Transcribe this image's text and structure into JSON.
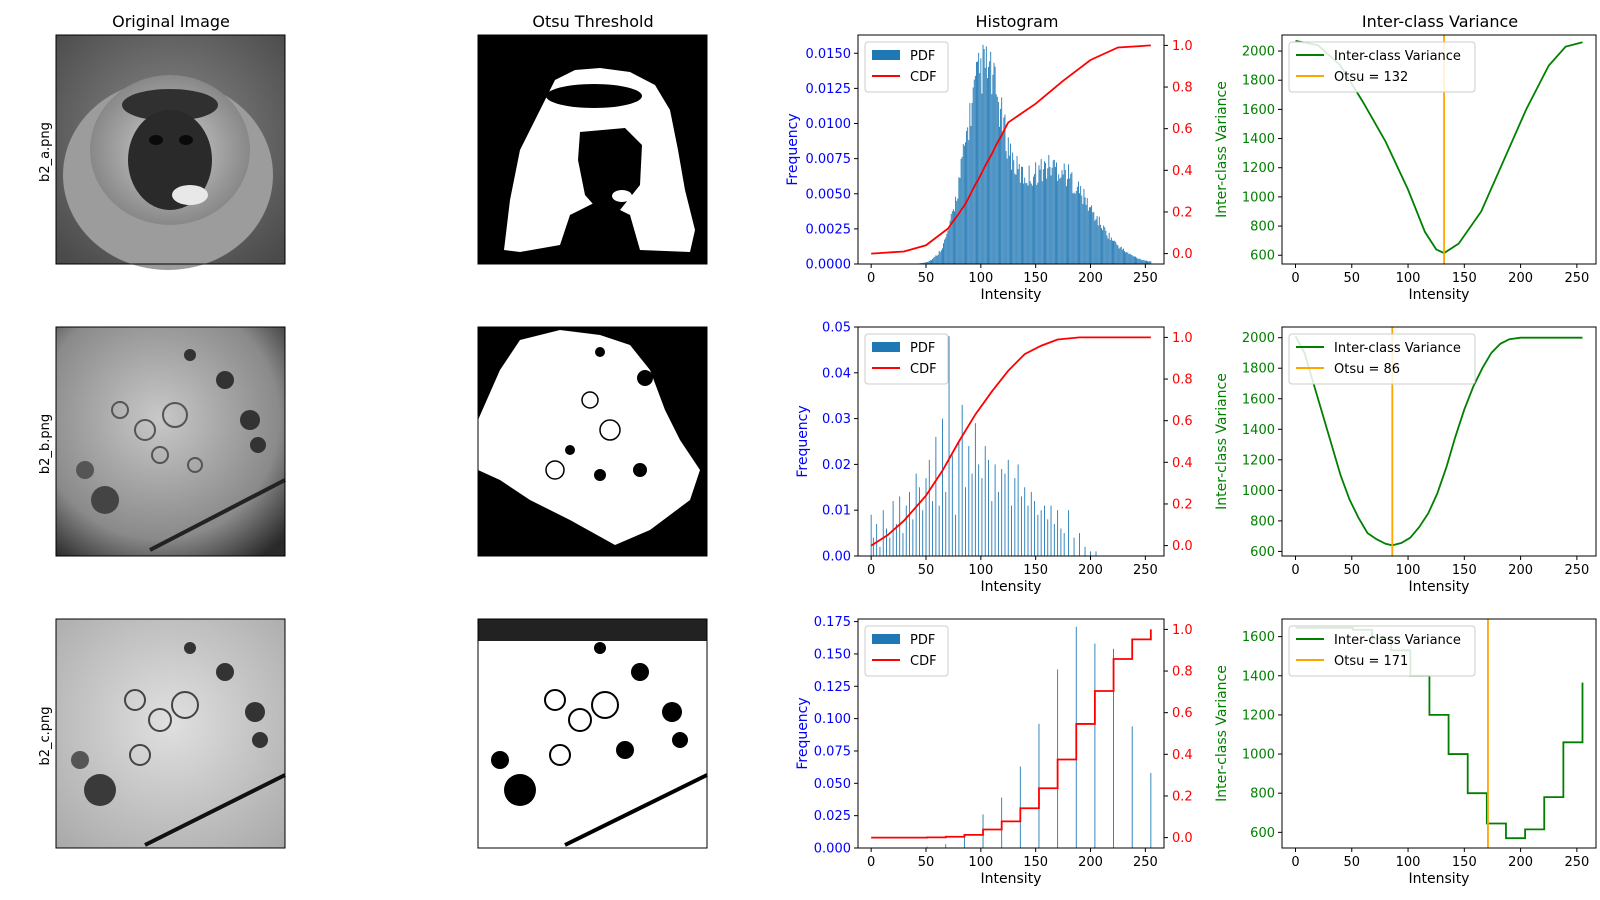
{
  "column_titles": [
    "Original Image",
    "Otsu Threshold",
    "Histogram",
    "Inter-class Variance"
  ],
  "row_labels": [
    "b2_a.png",
    "b2_b.png",
    "b2_c.png"
  ],
  "colors": {
    "pdf": "#1f77b4",
    "cdf": "#ff0000",
    "variance": "#008000",
    "otsu_line": "#ffa500",
    "left_axis": "#0000ff",
    "right_axis": "#ff0000"
  },
  "chart_data": [
    {
      "type": "bar",
      "row": "b2_a.png",
      "title": "Histogram",
      "xlabel": "Intensity",
      "ylabel": "Frequency",
      "y2label": "",
      "xlim": [
        -12,
        267
      ],
      "ylim": [
        0,
        0.0163
      ],
      "y2lim": [
        -0.05,
        1.05
      ],
      "xticks": [
        0,
        50,
        100,
        150,
        200,
        250
      ],
      "yticks": [
        0,
        0.0025,
        0.005,
        0.0075,
        0.01,
        0.0125,
        0.015
      ],
      "ytick_labels": [
        "0.0000",
        "0.0025",
        "0.0050",
        "0.0075",
        "0.0100",
        "0.0125",
        "0.0150"
      ],
      "y2ticks": [
        0,
        0.2,
        0.4,
        0.6,
        0.8,
        1.0
      ],
      "y2tick_labels": [
        "0.0",
        "0.2",
        "0.4",
        "0.6",
        "0.8",
        "1.0"
      ],
      "legend": [
        "PDF",
        "CDF"
      ],
      "legend_loc": "upper left",
      "pdf_profile": {
        "kind": "bimodal",
        "center1": 102,
        "sd1": 17,
        "weight1": 0.68,
        "center2": 165,
        "sd2": 33,
        "weight2": 0.32,
        "peak": 0.0156
      },
      "cdf_points": [
        [
          0,
          0
        ],
        [
          30,
          0.01
        ],
        [
          50,
          0.04
        ],
        [
          70,
          0.12
        ],
        [
          85,
          0.23
        ],
        [
          100,
          0.38
        ],
        [
          110,
          0.48
        ],
        [
          125,
          0.63
        ],
        [
          150,
          0.72
        ],
        [
          175,
          0.83
        ],
        [
          200,
          0.93
        ],
        [
          225,
          0.99
        ],
        [
          255,
          1.0
        ]
      ]
    },
    {
      "type": "line",
      "row": "b2_a.png",
      "title": "Inter-class Variance",
      "xlabel": "Intensity",
      "ylabel": "Inter-class Variance",
      "xlim": [
        -12,
        267
      ],
      "ylim": [
        540,
        2110
      ],
      "xticks": [
        0,
        50,
        100,
        150,
        200,
        250
      ],
      "yticks": [
        600,
        800,
        1000,
        1200,
        1400,
        1600,
        1800,
        2000
      ],
      "legend": [
        "Inter-class Variance",
        "Otsu = 132"
      ],
      "legend_loc": "upper left",
      "otsu": 132,
      "variance_points": [
        [
          0,
          2070
        ],
        [
          20,
          2040
        ],
        [
          40,
          1900
        ],
        [
          60,
          1650
        ],
        [
          80,
          1380
        ],
        [
          100,
          1050
        ],
        [
          115,
          760
        ],
        [
          125,
          640
        ],
        [
          132,
          615
        ],
        [
          145,
          680
        ],
        [
          165,
          900
        ],
        [
          185,
          1250
        ],
        [
          205,
          1600
        ],
        [
          225,
          1900
        ],
        [
          240,
          2030
        ],
        [
          255,
          2060
        ]
      ]
    },
    {
      "type": "bar",
      "row": "b2_b.png",
      "title": "",
      "xlabel": "Intensity",
      "ylabel": "Frequency",
      "y2label": "",
      "xlim": [
        -12,
        267
      ],
      "ylim": [
        0,
        0.05
      ],
      "y2lim": [
        -0.05,
        1.05
      ],
      "xticks": [
        0,
        50,
        100,
        150,
        200,
        250
      ],
      "yticks": [
        0,
        0.01,
        0.02,
        0.03,
        0.04,
        0.05
      ],
      "ytick_labels": [
        "0.00",
        "0.01",
        "0.02",
        "0.03",
        "0.04",
        "0.05"
      ],
      "y2ticks": [
        0,
        0.2,
        0.4,
        0.6,
        0.8,
        1.0
      ],
      "y2tick_labels": [
        "0.0",
        "0.2",
        "0.4",
        "0.6",
        "0.8",
        "1.0"
      ],
      "legend": [
        "PDF",
        "CDF"
      ],
      "legend_loc": "upper left",
      "pdf_bars": [
        [
          0,
          0.009
        ],
        [
          2,
          0.004
        ],
        [
          5,
          0.007
        ],
        [
          8,
          0.002
        ],
        [
          11,
          0.01
        ],
        [
          14,
          0.006
        ],
        [
          17,
          0.004
        ],
        [
          20,
          0.012
        ],
        [
          23,
          0.007
        ],
        [
          26,
          0.013
        ],
        [
          29,
          0.005
        ],
        [
          32,
          0.011
        ],
        [
          35,
          0.014
        ],
        [
          38,
          0.008
        ],
        [
          41,
          0.018
        ],
        [
          44,
          0.015
        ],
        [
          47,
          0.01
        ],
        [
          50,
          0.017
        ],
        [
          53,
          0.021
        ],
        [
          56,
          0.012
        ],
        [
          59,
          0.026
        ],
        [
          62,
          0.011
        ],
        [
          65,
          0.03
        ],
        [
          68,
          0.014
        ],
        [
          71,
          0.048
        ],
        [
          74,
          0.022
        ],
        [
          77,
          0.009
        ],
        [
          80,
          0.025
        ],
        [
          83,
          0.033
        ],
        [
          86,
          0.015
        ],
        [
          89,
          0.024
        ],
        [
          92,
          0.018
        ],
        [
          95,
          0.029
        ],
        [
          98,
          0.02
        ],
        [
          101,
          0.017
        ],
        [
          104,
          0.024
        ],
        [
          107,
          0.021
        ],
        [
          110,
          0.012
        ],
        [
          113,
          0.02
        ],
        [
          116,
          0.014
        ],
        [
          119,
          0.019
        ],
        [
          122,
          0.018
        ],
        [
          125,
          0.021
        ],
        [
          128,
          0.011
        ],
        [
          131,
          0.017
        ],
        [
          134,
          0.02
        ],
        [
          137,
          0.013
        ],
        [
          140,
          0.015
        ],
        [
          143,
          0.011
        ],
        [
          146,
          0.014
        ],
        [
          149,
          0.012
        ],
        [
          152,
          0.009
        ],
        [
          155,
          0.01
        ],
        [
          158,
          0.011
        ],
        [
          161,
          0.008
        ],
        [
          164,
          0.011
        ],
        [
          167,
          0.007
        ],
        [
          170,
          0.01
        ],
        [
          173,
          0.006
        ],
        [
          176,
          0.005
        ],
        [
          180,
          0.01
        ],
        [
          185,
          0.004
        ],
        [
          190,
          0.005
        ],
        [
          195,
          0.002
        ],
        [
          200,
          0.001
        ],
        [
          205,
          0.001
        ]
      ],
      "cdf_points": [
        [
          0,
          0.0
        ],
        [
          15,
          0.05
        ],
        [
          30,
          0.12
        ],
        [
          50,
          0.24
        ],
        [
          65,
          0.36
        ],
        [
          80,
          0.5
        ],
        [
          95,
          0.63
        ],
        [
          110,
          0.74
        ],
        [
          125,
          0.84
        ],
        [
          140,
          0.92
        ],
        [
          155,
          0.96
        ],
        [
          170,
          0.99
        ],
        [
          190,
          1.0
        ],
        [
          255,
          1.0
        ]
      ]
    },
    {
      "type": "line",
      "row": "b2_b.png",
      "title": "",
      "xlabel": "Intensity",
      "ylabel": "Inter-class Variance",
      "xlim": [
        -12,
        267
      ],
      "ylim": [
        570,
        2070
      ],
      "xticks": [
        0,
        50,
        100,
        150,
        200,
        250
      ],
      "yticks": [
        600,
        800,
        1000,
        1200,
        1400,
        1600,
        1800,
        2000
      ],
      "legend": [
        "Inter-class Variance",
        "Otsu = 86"
      ],
      "legend_loc": "upper left",
      "otsu": 86,
      "variance_points": [
        [
          0,
          2010
        ],
        [
          8,
          1900
        ],
        [
          16,
          1700
        ],
        [
          24,
          1500
        ],
        [
          32,
          1300
        ],
        [
          40,
          1100
        ],
        [
          48,
          940
        ],
        [
          56,
          820
        ],
        [
          64,
          720
        ],
        [
          72,
          680
        ],
        [
          80,
          650
        ],
        [
          86,
          640
        ],
        [
          94,
          655
        ],
        [
          102,
          690
        ],
        [
          110,
          760
        ],
        [
          118,
          850
        ],
        [
          126,
          980
        ],
        [
          134,
          1150
        ],
        [
          142,
          1350
        ],
        [
          150,
          1530
        ],
        [
          158,
          1680
        ],
        [
          166,
          1800
        ],
        [
          174,
          1900
        ],
        [
          182,
          1960
        ],
        [
          190,
          1990
        ],
        [
          200,
          2000
        ],
        [
          255,
          2000
        ]
      ]
    },
    {
      "type": "bar",
      "row": "b2_c.png",
      "title": "",
      "xlabel": "Intensity",
      "ylabel": "Frequency",
      "y2label": "",
      "xlim": [
        -12,
        267
      ],
      "ylim": [
        0,
        0.177
      ],
      "y2lim": [
        -0.05,
        1.05
      ],
      "xticks": [
        0,
        50,
        100,
        150,
        200,
        250
      ],
      "yticks": [
        0,
        0.025,
        0.05,
        0.075,
        0.1,
        0.125,
        0.15,
        0.175
      ],
      "ytick_labels": [
        "0.000",
        "0.025",
        "0.050",
        "0.075",
        "0.100",
        "0.125",
        "0.150",
        "0.175"
      ],
      "y2ticks": [
        0,
        0.2,
        0.4,
        0.6,
        0.8,
        1.0
      ],
      "y2tick_labels": [
        "0.0",
        "0.2",
        "0.4",
        "0.6",
        "0.8",
        "1.0"
      ],
      "legend": [
        "PDF",
        "CDF"
      ],
      "legend_loc": "upper left",
      "pdf_bars": [
        [
          51,
          0.001
        ],
        [
          68,
          0.003
        ],
        [
          85,
          0.009
        ],
        [
          102,
          0.026
        ],
        [
          119,
          0.039
        ],
        [
          136,
          0.063
        ],
        [
          153,
          0.096
        ],
        [
          170,
          0.138
        ],
        [
          187,
          0.171
        ],
        [
          204,
          0.158
        ],
        [
          221,
          0.154
        ],
        [
          238,
          0.094
        ],
        [
          255,
          0.058
        ]
      ],
      "cdf_steps": [
        [
          0,
          0.0
        ],
        [
          51,
          0.001
        ],
        [
          68,
          0.004
        ],
        [
          85,
          0.013
        ],
        [
          102,
          0.039
        ],
        [
          119,
          0.078
        ],
        [
          136,
          0.141
        ],
        [
          153,
          0.237
        ],
        [
          170,
          0.375
        ],
        [
          187,
          0.546
        ],
        [
          204,
          0.704
        ],
        [
          221,
          0.858
        ],
        [
          238,
          0.952
        ],
        [
          255,
          1.0
        ]
      ]
    },
    {
      "type": "line",
      "row": "b2_c.png",
      "title": "",
      "xlabel": "Intensity",
      "ylabel": "Inter-class Variance",
      "xlim": [
        -12,
        267
      ],
      "ylim": [
        520,
        1690
      ],
      "xticks": [
        0,
        50,
        100,
        150,
        200,
        250
      ],
      "yticks": [
        600,
        800,
        1000,
        1200,
        1400,
        1600
      ],
      "legend": [
        "Inter-class Variance",
        "Otsu = 171"
      ],
      "legend_loc": "upper left",
      "otsu": 171,
      "variance_steps": [
        [
          0,
          1645
        ],
        [
          51,
          1635
        ],
        [
          68,
          1590
        ],
        [
          85,
          1530
        ],
        [
          102,
          1400
        ],
        [
          119,
          1200
        ],
        [
          136,
          1000
        ],
        [
          153,
          800
        ],
        [
          170,
          645
        ],
        [
          187,
          570
        ],
        [
          204,
          615
        ],
        [
          221,
          780
        ],
        [
          238,
          1060
        ],
        [
          255,
          1365
        ]
      ]
    }
  ]
}
